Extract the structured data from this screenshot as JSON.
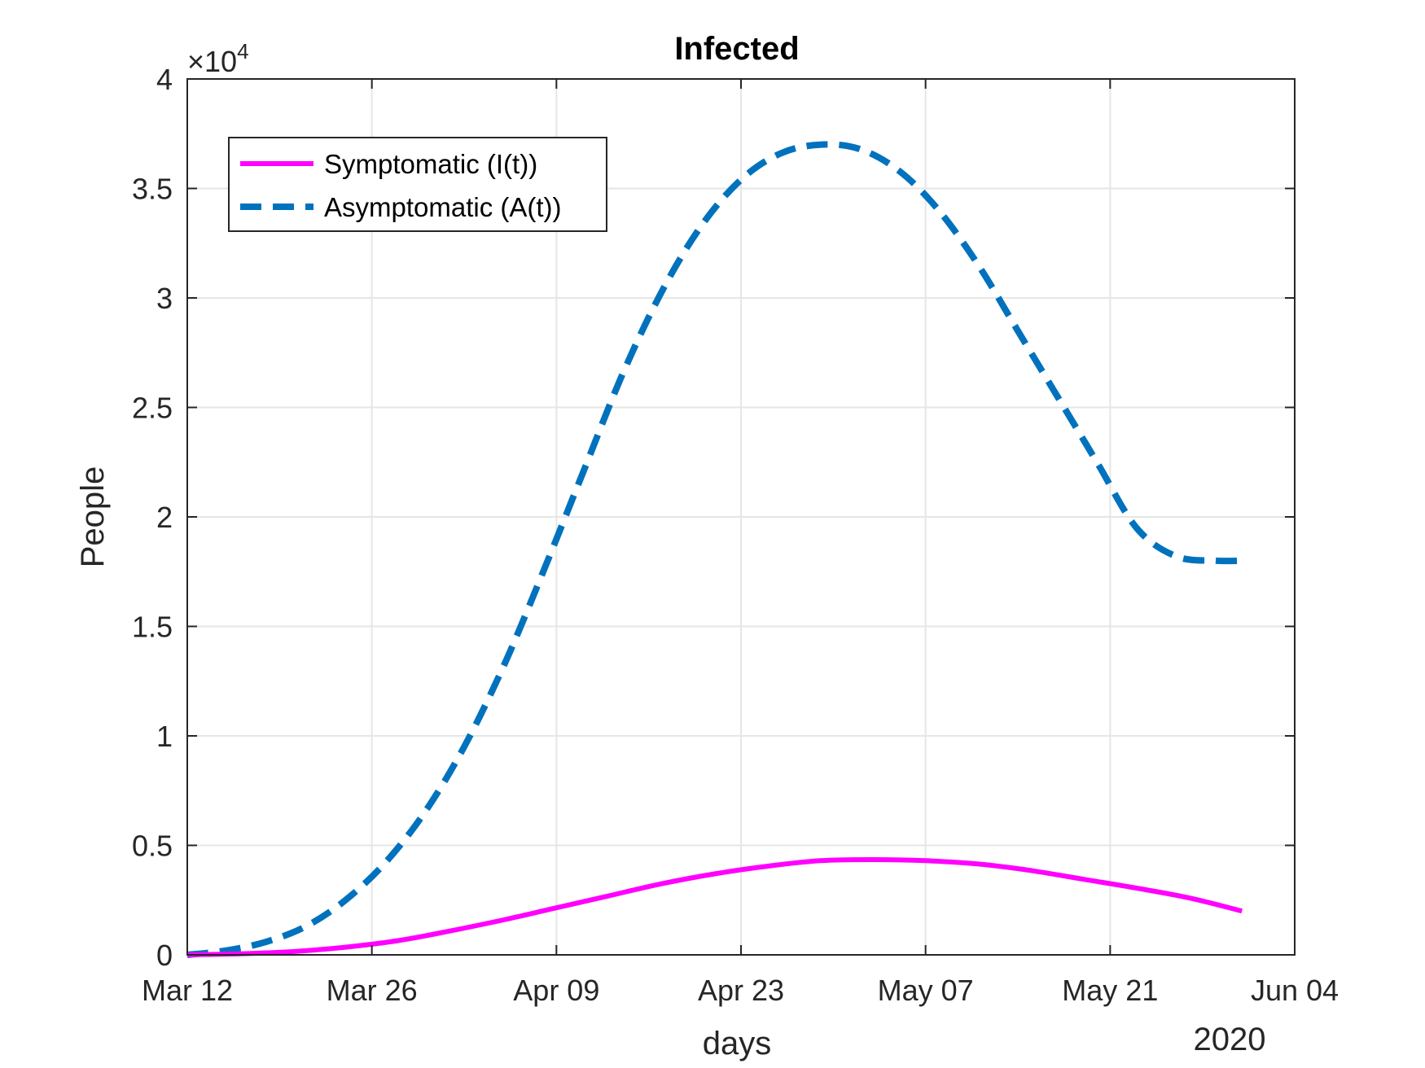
{
  "chart_data": {
    "type": "line",
    "title": "Infected",
    "xlabel": "days",
    "ylabel": "People",
    "x_secondary_label": "2020",
    "y_exponent_label": "×10",
    "y_exponent_power": "4",
    "grid": true,
    "legend_position": "top-left",
    "x_ticks": [
      {
        "day": 0,
        "label": "Mar 12"
      },
      {
        "day": 14,
        "label": "Mar 26"
      },
      {
        "day": 28,
        "label": "Apr 09"
      },
      {
        "day": 42,
        "label": "Apr 23"
      },
      {
        "day": 56,
        "label": "May 07"
      },
      {
        "day": 70,
        "label": "May 21"
      },
      {
        "day": 84,
        "label": "Jun 04"
      }
    ],
    "xlim": [
      0,
      84
    ],
    "y_ticks": [
      {
        "value": 0,
        "label": "0"
      },
      {
        "value": 5000,
        "label": "0.5"
      },
      {
        "value": 10000,
        "label": "1"
      },
      {
        "value": 15000,
        "label": "1.5"
      },
      {
        "value": 20000,
        "label": "2"
      },
      {
        "value": 25000,
        "label": "2.5"
      },
      {
        "value": 30000,
        "label": "3"
      },
      {
        "value": 35000,
        "label": "3.5"
      },
      {
        "value": 40000,
        "label": "4"
      }
    ],
    "ylim": [
      0,
      40000
    ],
    "series": [
      {
        "name": "Symptomatic (I(t))",
        "color": "#ff00ff",
        "style": "solid",
        "x": [
          0,
          4,
          8,
          12,
          16,
          20,
          24,
          28,
          32,
          36,
          40,
          44,
          48,
          52,
          56,
          60,
          64,
          68,
          72,
          76,
          80
        ],
        "y": [
          0,
          50,
          150,
          350,
          650,
          1100,
          1600,
          2150,
          2700,
          3250,
          3700,
          4050,
          4300,
          4350,
          4300,
          4150,
          3850,
          3450,
          3050,
          2600,
          2000
        ]
      },
      {
        "name": "Asymptomatic (A(t))",
        "color": "#0072bd",
        "style": "dashed",
        "x": [
          0,
          3,
          6,
          9,
          12,
          15,
          18,
          21,
          24,
          27,
          30,
          33,
          36,
          39,
          42,
          45,
          48,
          51,
          54,
          57,
          60,
          63,
          66,
          69,
          72,
          75,
          78,
          80
        ],
        "y": [
          0,
          200,
          600,
          1300,
          2500,
          4200,
          6500,
          9500,
          13200,
          17500,
          22000,
          26500,
          30300,
          33300,
          35400,
          36600,
          37000,
          36800,
          35800,
          34000,
          31500,
          28500,
          25500,
          22500,
          19500,
          18200,
          18000,
          18000
        ]
      }
    ]
  }
}
